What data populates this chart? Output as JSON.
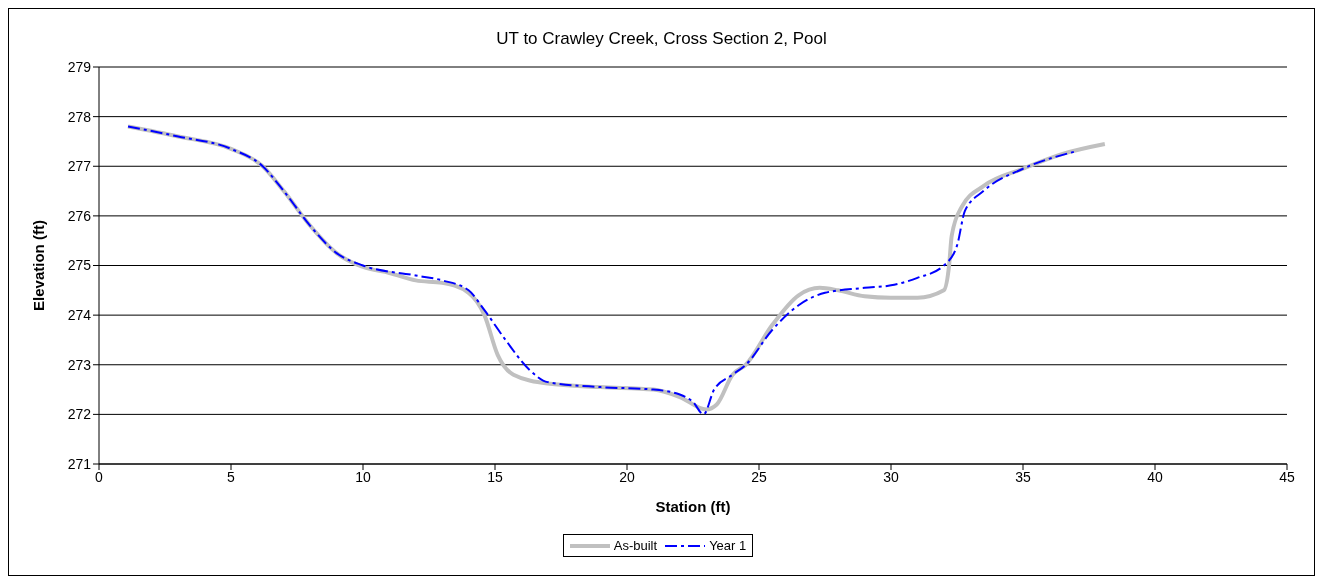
{
  "chart_data": {
    "type": "line",
    "title": "UT to Crawley Creek, Cross Section 2, Pool",
    "xlabel": "Station (ft)",
    "ylabel": "Elevation (ft)",
    "xlim": [
      0,
      45
    ],
    "xticks": [
      0,
      5,
      10,
      15,
      20,
      25,
      30,
      35,
      40,
      45
    ],
    "ylim": [
      271,
      279
    ],
    "yticks": [
      271,
      272,
      273,
      274,
      275,
      276,
      277,
      278,
      279
    ],
    "grid": "y",
    "legend": "bottom",
    "marker": "none",
    "series": [
      {
        "name": "As-built",
        "color": "#c0c0c0",
        "line_style": "solid",
        "x": [
          1.1,
          3,
          5,
          6.2,
          7,
          8,
          9,
          10,
          11,
          12,
          13,
          14,
          14.6,
          15.1,
          15.7,
          17,
          19,
          21,
          22,
          23,
          23.4,
          24,
          24.5,
          25.5,
          26.5,
          27.3,
          28,
          29,
          30,
          31,
          32,
          32.2,
          32.3,
          32.7,
          33.5,
          35,
          36.5,
          38.1
        ],
        "values": [
          277.8,
          277.6,
          277.35,
          277.0,
          276.5,
          275.8,
          275.25,
          274.97,
          274.85,
          274.7,
          274.65,
          274.45,
          274.0,
          273.2,
          272.8,
          272.62,
          272.55,
          272.5,
          272.35,
          272.1,
          272.2,
          272.8,
          273.0,
          273.8,
          274.4,
          274.55,
          274.5,
          274.38,
          274.35,
          274.35,
          274.5,
          275.0,
          275.6,
          276.2,
          276.6,
          276.95,
          277.25,
          277.45
        ]
      },
      {
        "name": "Year 1",
        "color": "#0000ff",
        "line_style": "dashed",
        "x": [
          1.1,
          3,
          5,
          6.2,
          7,
          8,
          9,
          10,
          12,
          13,
          14,
          14.6,
          15.4,
          16.3,
          17,
          19,
          21,
          22,
          22.5,
          22.9,
          23.3,
          24,
          24.5,
          25.5,
          26.5,
          27.5,
          29,
          30,
          31,
          32,
          32.5,
          32.8,
          33.5,
          35,
          37
        ],
        "values": [
          277.8,
          277.6,
          277.35,
          277.0,
          276.5,
          275.8,
          275.25,
          275.0,
          274.8,
          274.7,
          274.5,
          274.1,
          273.5,
          272.9,
          272.65,
          272.55,
          272.5,
          272.4,
          272.25,
          272.0,
          272.5,
          272.8,
          273.0,
          273.7,
          274.2,
          274.45,
          274.55,
          274.6,
          274.75,
          275.0,
          275.4,
          276.1,
          276.5,
          276.95,
          277.3
        ]
      }
    ]
  }
}
